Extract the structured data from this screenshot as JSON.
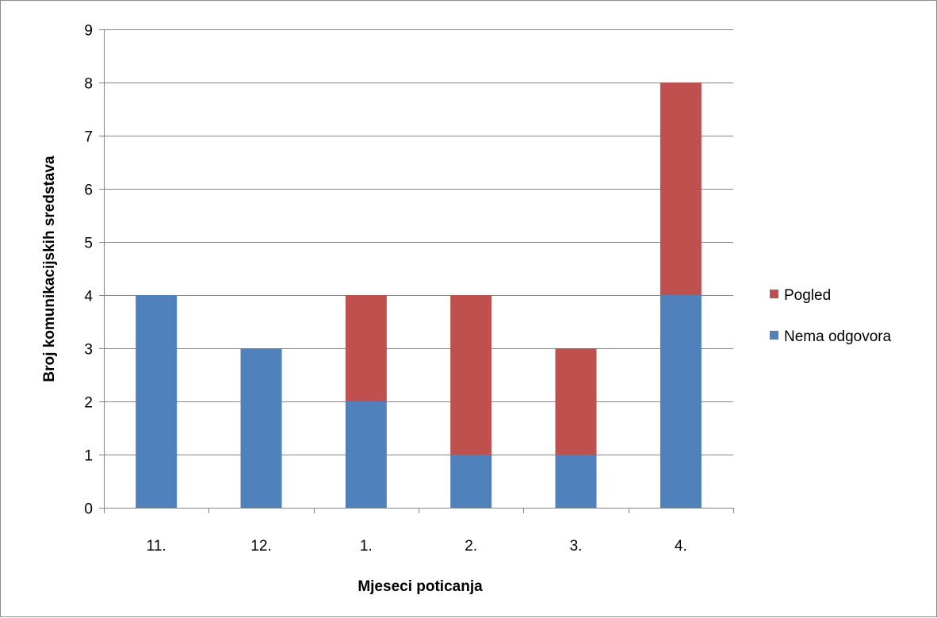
{
  "chart_data": {
    "type": "bar",
    "stacked": true,
    "categories": [
      "11.",
      "12.",
      "1.",
      "2.",
      "3.",
      "4."
    ],
    "series": [
      {
        "name": "Nema odgovora",
        "color": "#4f81bd",
        "values": [
          4,
          3,
          2,
          1,
          1,
          4
        ]
      },
      {
        "name": "Pogled",
        "color": "#c0504d",
        "values": [
          0,
          0,
          2,
          3,
          2,
          4
        ]
      }
    ],
    "xlabel": "Mjeseci poticanja",
    "ylabel": "Broj komunikacijskih sredstava",
    "ylim": [
      0,
      9
    ],
    "yticks": [
      "0",
      "1",
      "2",
      "3",
      "4",
      "5",
      "6",
      "7",
      "8",
      "9"
    ],
    "grid": true,
    "legend_position": "right"
  }
}
